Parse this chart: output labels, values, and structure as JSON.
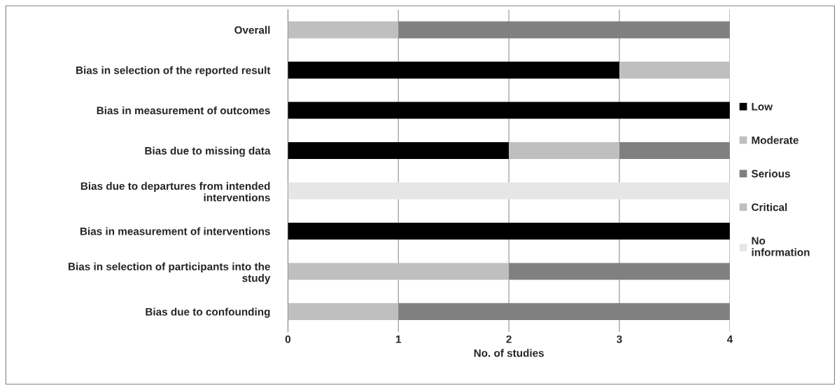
{
  "chart_data": {
    "type": "bar",
    "orientation": "horizontal",
    "stacked": true,
    "xlabel": "No. of studies",
    "categories": [
      "Overall",
      "Bias in selection of the reported result",
      "Bias in measurement of outcomes",
      "Bias due to missing data",
      "Bias due to departures from intended interventions",
      "Bias in measurement of interventions",
      "Bias in selection of participants into the study",
      "Bias due to confounding"
    ],
    "series": [
      {
        "name": "Low",
        "color": "#000000",
        "values": [
          0,
          3,
          4,
          2,
          0,
          4,
          0,
          0
        ]
      },
      {
        "name": "Moderate",
        "color": "#bfbfbf",
        "values": [
          1,
          1,
          0,
          1,
          0,
          0,
          2,
          1
        ]
      },
      {
        "name": "Serious",
        "color": "#808080",
        "values": [
          3,
          0,
          0,
          1,
          0,
          0,
          2,
          3
        ]
      },
      {
        "name": "Critical",
        "color": "#bfbfbf",
        "values": [
          0,
          0,
          0,
          0,
          0,
          0,
          0,
          0
        ]
      },
      {
        "name": "No information",
        "color": "#e6e6e6",
        "values": [
          0,
          0,
          0,
          0,
          4,
          0,
          0,
          0
        ]
      }
    ],
    "xlim": [
      0,
      4
    ],
    "xticks": [
      0,
      1,
      2,
      3,
      4
    ],
    "grid": "x",
    "legend": "right"
  }
}
